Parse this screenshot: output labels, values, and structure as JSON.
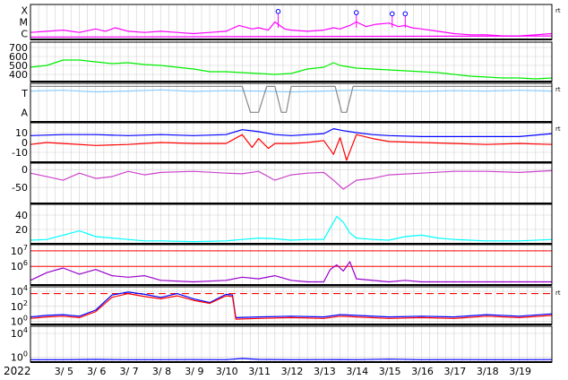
{
  "year_label": "2022",
  "side_mark": "rt",
  "x_axis": {
    "start": "3/ 4",
    "end": "3/ 20",
    "tick_labels": [
      "3/ 5",
      "3/ 6",
      "3/ 7",
      "3/ 8",
      "3/ 9",
      "3/10",
      "3/11",
      "3/12",
      "3/13",
      "3/14",
      "3/15",
      "3/16",
      "3/17",
      "3/18",
      "3/19"
    ]
  },
  "colors": {
    "magenta": "#ff00ff",
    "green": "#00ee00",
    "lightblue": "#88ccff",
    "pink": "#ffaaff",
    "gray": "#888888",
    "blue": "#0000ff",
    "red": "#ff0000",
    "purple": "#cc44cc",
    "cyan": "#00ffff",
    "violet": "#9900cc",
    "dkgreen": "#228822",
    "grid": "#d0d0d0"
  },
  "chart_data": [
    {
      "id": "xray",
      "type": "line",
      "title": "",
      "ytick_labels": [
        "X",
        "M",
        "C"
      ],
      "ylim": [
        0,
        3
      ],
      "series": [
        {
          "color": "magenta",
          "x": [
            4.0,
            4.5,
            5.0,
            5.5,
            6.0,
            6.3,
            6.6,
            7.0,
            7.5,
            8.0,
            8.5,
            9.0,
            9.5,
            10.0,
            10.4,
            10.8,
            11.0,
            11.3,
            11.5,
            11.8,
            12.0,
            12.5,
            13.0,
            13.3,
            13.5,
            13.8,
            14.0,
            14.3,
            14.6,
            15.0,
            15.3,
            15.5,
            15.7,
            16.0,
            16.5,
            17.0,
            17.5,
            18.0,
            18.5,
            19.0,
            19.5,
            20.0
          ],
          "y": [
            0.6,
            0.7,
            0.8,
            0.6,
            0.9,
            0.7,
            1.0,
            0.7,
            0.6,
            0.7,
            0.6,
            0.5,
            0.6,
            0.7,
            1.2,
            0.9,
            1.0,
            0.8,
            1.5,
            0.9,
            0.8,
            0.7,
            0.8,
            1.0,
            0.9,
            1.2,
            1.5,
            1.1,
            1.3,
            1.4,
            1.1,
            1.2,
            1.0,
            0.9,
            0.7,
            0.5,
            0.4,
            0.4,
            0.3,
            0.3,
            0.4,
            0.5
          ]
        },
        {
          "color": "magenta",
          "x": [
            4.0,
            20.0
          ],
          "y": [
            0.2,
            0.3
          ]
        }
      ],
      "markers": [
        {
          "x": 11.6,
          "y": 2.4
        },
        {
          "x": 14.0,
          "y": 2.3
        },
        {
          "x": 15.1,
          "y": 2.2
        },
        {
          "x": 15.5,
          "y": 2.2
        }
      ]
    },
    {
      "id": "wind",
      "type": "line",
      "title": "",
      "ytick_labels": [
        "700",
        "600",
        "500",
        "400"
      ],
      "ytick_values": [
        700,
        600,
        500,
        400
      ],
      "ylim": [
        320,
        760
      ],
      "series": [
        {
          "color": "green",
          "x": [
            4.0,
            4.5,
            5.0,
            5.5,
            6.0,
            6.5,
            7.0,
            7.5,
            8.0,
            8.5,
            9.0,
            9.5,
            10.0,
            10.5,
            11.0,
            11.5,
            12.0,
            12.5,
            13.0,
            13.3,
            13.5,
            14.0,
            14.5,
            15.0,
            15.5,
            16.0,
            16.5,
            17.0,
            17.5,
            18.0,
            18.5,
            19.0,
            19.5,
            20.0
          ],
          "y": [
            480,
            500,
            560,
            560,
            540,
            520,
            530,
            510,
            500,
            480,
            460,
            430,
            430,
            420,
            410,
            400,
            410,
            460,
            480,
            530,
            500,
            470,
            460,
            450,
            440,
            430,
            420,
            400,
            380,
            370,
            360,
            360,
            350,
            360
          ]
        }
      ]
    },
    {
      "id": "kp",
      "type": "line",
      "title": "",
      "ytick_labels": [
        "T",
        "A"
      ],
      "ylim": [
        0,
        1
      ],
      "series": [
        {
          "color": "lightblue",
          "x": [
            4.0,
            5.0,
            6.0,
            7.0,
            8.0,
            9.0,
            10.0,
            11.0,
            12.0,
            13.0,
            14.0,
            15.0,
            16.0,
            17.0,
            18.0,
            19.0,
            20.0
          ],
          "y": [
            0.8,
            0.82,
            0.78,
            0.8,
            0.83,
            0.79,
            0.81,
            0.8,
            0.78,
            0.8,
            0.82,
            0.8,
            0.79,
            0.81,
            0.8,
            0.82,
            0.8
          ]
        },
        {
          "color": "gray",
          "x": [
            4.0,
            10.5,
            10.75,
            11.0,
            11.25,
            11.5,
            11.7,
            11.85,
            12.0,
            13.35,
            13.55,
            13.7,
            13.9,
            20.0
          ],
          "y": [
            0.92,
            0.92,
            0.25,
            0.25,
            0.92,
            0.92,
            0.25,
            0.25,
            0.92,
            0.92,
            0.25,
            0.25,
            0.92,
            0.92
          ]
        }
      ]
    },
    {
      "id": "bfield",
      "type": "line",
      "title": "",
      "ytick_labels": [
        "10",
        "0",
        "-10"
      ],
      "ytick_values": [
        10,
        0,
        -10
      ],
      "ylim": [
        -20,
        20
      ],
      "series": [
        {
          "color": "blue",
          "x": [
            4.0,
            5.0,
            6.0,
            7.0,
            8.0,
            9.0,
            10.0,
            10.5,
            11.0,
            11.5,
            12.0,
            12.5,
            13.0,
            13.3,
            13.6,
            14.0,
            14.5,
            15.0,
            16.0,
            17.0,
            18.0,
            19.0,
            20.0
          ],
          "y": [
            7,
            8,
            8,
            7,
            8,
            7,
            8,
            13,
            11,
            8,
            7,
            8,
            9,
            14,
            12,
            10,
            8,
            7,
            6,
            6,
            6,
            6,
            9
          ]
        },
        {
          "color": "red",
          "x": [
            4.0,
            4.5,
            5.0,
            6.0,
            7.0,
            8.0,
            9.0,
            10.0,
            10.5,
            10.8,
            11.0,
            11.3,
            11.5,
            12.0,
            12.5,
            13.0,
            13.3,
            13.5,
            13.7,
            14.0,
            14.5,
            15.0,
            16.0,
            17.0,
            18.0,
            19.0,
            20.0
          ],
          "y": [
            -2,
            0,
            -1,
            -3,
            -2,
            0,
            -1,
            -1,
            8,
            -5,
            4,
            -6,
            -1,
            -1,
            0,
            2,
            -12,
            5,
            -18,
            8,
            4,
            1,
            0,
            -1,
            -2,
            -1,
            -2
          ]
        }
      ]
    },
    {
      "id": "bz",
      "type": "line",
      "title": "",
      "ytick_labels": [
        "0",
        "-50"
      ],
      "ytick_values": [
        0,
        -50
      ],
      "ylim": [
        -95,
        18
      ],
      "series": [
        {
          "color": "purple",
          "x": [
            4.0,
            4.5,
            5.0,
            5.5,
            6.0,
            6.5,
            7.0,
            7.5,
            8.0,
            9.0,
            10.0,
            10.5,
            11.0,
            11.5,
            12.0,
            12.5,
            13.0,
            13.3,
            13.6,
            14.0,
            14.5,
            15.0,
            16.0,
            17.0,
            18.0,
            19.0,
            20.0
          ],
          "y": [
            -10,
            -20,
            -30,
            -10,
            -25,
            -20,
            -5,
            -15,
            -8,
            -5,
            -10,
            -12,
            -5,
            -30,
            -15,
            -10,
            -8,
            -30,
            -55,
            -30,
            -25,
            -15,
            -10,
            -5,
            -5,
            -8,
            -3
          ]
        }
      ]
    },
    {
      "id": "density",
      "type": "line",
      "title": "",
      "ytick_labels": [
        "40",
        "20"
      ],
      "ytick_values": [
        40,
        20
      ],
      "ylim": [
        0,
        55
      ],
      "series": [
        {
          "color": "cyan",
          "x": [
            4.0,
            4.5,
            5.0,
            5.5,
            6.0,
            6.5,
            7.0,
            7.5,
            8.0,
            9.0,
            10.0,
            10.5,
            11.0,
            11.5,
            12.0,
            12.5,
            13.0,
            13.2,
            13.4,
            13.6,
            13.8,
            14.0,
            14.5,
            15.0,
            15.5,
            16.0,
            16.5,
            17.0,
            18.0,
            19.0,
            20.0
          ],
          "y": [
            5,
            6,
            12,
            18,
            10,
            8,
            6,
            4,
            4,
            3,
            4,
            6,
            8,
            7,
            5,
            6,
            6,
            22,
            38,
            30,
            15,
            8,
            6,
            5,
            10,
            12,
            8,
            6,
            4,
            4,
            6
          ]
        }
      ]
    },
    {
      "id": "protons",
      "type": "line",
      "title": "",
      "ytick_labels": [
        "10^7",
        "10^6"
      ],
      "ytick_values": [
        7,
        6
      ],
      "ylim": [
        4.8,
        7.4
      ],
      "series": [
        {
          "color": "violet",
          "x": [
            4.0,
            4.5,
            5.0,
            5.5,
            6.0,
            6.5,
            7.0,
            7.5,
            8.0,
            9.0,
            10.0,
            10.5,
            11.0,
            11.5,
            12.0,
            12.5,
            13.0,
            13.2,
            13.4,
            13.6,
            13.8,
            14.0,
            15.0,
            15.5,
            16.0,
            17.0,
            18.0,
            19.0,
            20.0
          ],
          "y": [
            5.1,
            5.6,
            5.9,
            5.5,
            5.8,
            5.4,
            5.3,
            5.4,
            5.1,
            5.0,
            5.1,
            5.3,
            5.2,
            5.4,
            5.1,
            5.0,
            5.0,
            5.8,
            6.1,
            5.7,
            6.3,
            5.2,
            5.0,
            5.1,
            5.0,
            5.0,
            5.0,
            5.0,
            5.0
          ]
        }
      ],
      "reference_lines": [
        7,
        6
      ]
    },
    {
      "id": "electrons",
      "type": "line",
      "title": "",
      "ytick_labels": [
        "10^4",
        "10^2",
        "10^0"
      ],
      "ytick_values": [
        4,
        2,
        0
      ],
      "ylim": [
        -0.4,
        4.6
      ],
      "series": [
        {
          "color": "blue",
          "x": [
            4.0,
            4.5,
            5.0,
            5.5,
            6.0,
            6.5,
            7.0,
            7.5,
            8.0,
            8.5,
            9.0,
            9.5,
            10.0,
            10.2,
            10.3,
            11.0,
            12.0,
            13.0,
            13.5,
            14.0,
            15.0,
            16.0,
            17.0,
            18.0,
            19.0,
            20.0
          ],
          "y": [
            0.6,
            0.8,
            0.9,
            0.7,
            1.5,
            3.5,
            3.9,
            3.6,
            3.2,
            3.7,
            3.0,
            2.5,
            3.6,
            3.5,
            0.5,
            0.6,
            0.7,
            0.6,
            0.9,
            0.8,
            0.6,
            0.7,
            0.6,
            0.9,
            0.7,
            1.0
          ]
        },
        {
          "color": "red",
          "x": [
            4.0,
            4.5,
            5.0,
            5.5,
            6.0,
            6.5,
            7.0,
            7.5,
            8.0,
            8.5,
            9.0,
            9.5,
            10.0,
            10.2,
            10.3,
            11.0,
            12.0,
            13.0,
            13.5,
            14.0,
            15.0,
            16.0,
            17.0,
            18.0,
            19.0,
            20.0
          ],
          "y": [
            0.4,
            0.6,
            0.7,
            0.5,
            1.3,
            3.2,
            3.7,
            3.3,
            3.0,
            3.4,
            2.8,
            2.4,
            3.4,
            3.3,
            0.3,
            0.4,
            0.5,
            0.4,
            0.7,
            0.6,
            0.4,
            0.5,
            0.4,
            0.7,
            0.5,
            0.8
          ]
        }
      ],
      "threshold": 3.7
    },
    {
      "id": "electrons_low",
      "type": "line",
      "title": "",
      "ytick_labels": [
        "10^4",
        "10^0"
      ],
      "ytick_values": [
        4,
        0
      ],
      "ylim": [
        -0.8,
        5.2
      ],
      "series": [
        {
          "color": "blue",
          "x": [
            4.0,
            5.0,
            6.0,
            7.0,
            8.0,
            9.0,
            10.0,
            10.5,
            11.0,
            12.0,
            13.0,
            14.0,
            15.0,
            16.0,
            17.0,
            18.0,
            19.0,
            20.0
          ],
          "y": [
            -0.4,
            -0.4,
            -0.35,
            -0.4,
            -0.4,
            -0.38,
            -0.4,
            -0.2,
            -0.35,
            -0.4,
            -0.38,
            -0.4,
            -0.3,
            -0.4,
            -0.38,
            -0.4,
            -0.4,
            -0.38
          ]
        }
      ]
    }
  ]
}
